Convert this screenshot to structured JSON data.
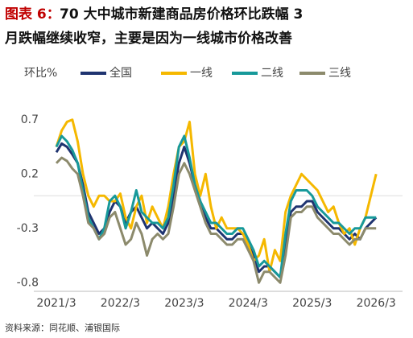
{
  "chart_data": {
    "type": "line",
    "title_prefix": "图表 6：",
    "title_lines": [
      "70 大中城市新建商品房价格环比跌幅 3",
      "月跌幅继续收窄，主要是因为一线城市价格改善"
    ],
    "y_label": "环比%",
    "source": "资料来源：同花顺、浦银国际",
    "categories": [
      "2021/3",
      null,
      null,
      null,
      null,
      null,
      null,
      null,
      null,
      null,
      null,
      null,
      "2022/3",
      null,
      null,
      null,
      null,
      null,
      null,
      null,
      null,
      null,
      null,
      null,
      "2023/3",
      null,
      null,
      null,
      null,
      null,
      null,
      null,
      null,
      null,
      null,
      null,
      "2024/3",
      null,
      null,
      null,
      null,
      null,
      null,
      null,
      null,
      null,
      null,
      null,
      "2025/3",
      null,
      null,
      null,
      null,
      null,
      null,
      null,
      null,
      null,
      null,
      null,
      "2026/3"
    ],
    "ylim": [
      -0.85,
      0.95
    ],
    "yticks": [
      0.7,
      0.2,
      -0.3,
      -0.8
    ],
    "series": [
      {
        "name": "全国",
        "color": "#1f3470",
        "values": [
          0.4,
          0.48,
          0.45,
          0.38,
          0.3,
          0.1,
          -0.15,
          -0.25,
          -0.35,
          -0.3,
          -0.15,
          -0.05,
          -0.1,
          -0.25,
          -0.15,
          -0.1,
          -0.2,
          -0.3,
          -0.25,
          -0.3,
          -0.35,
          -0.25,
          0.0,
          0.3,
          0.45,
          0.3,
          0.1,
          -0.05,
          -0.2,
          -0.3,
          -0.3,
          -0.35,
          -0.4,
          -0.4,
          -0.35,
          -0.35,
          -0.45,
          -0.55,
          -0.7,
          -0.65,
          -0.65,
          -0.7,
          -0.75,
          -0.45,
          -0.15,
          -0.1,
          -0.1,
          -0.05,
          -0.05,
          -0.15,
          -0.2,
          -0.25,
          -0.3,
          -0.3,
          -0.35,
          -0.4,
          -0.35,
          -0.4,
          -0.3,
          -0.25,
          -0.2
        ]
      },
      {
        "name": "一线",
        "color": "#f5b800",
        "values": [
          0.45,
          0.6,
          0.68,
          0.7,
          0.5,
          0.2,
          0.0,
          -0.1,
          0.0,
          0.0,
          -0.05,
          -0.05,
          0.02,
          -0.2,
          -0.3,
          -0.1,
          0.0,
          -0.25,
          -0.1,
          -0.2,
          -0.3,
          -0.1,
          0.2,
          0.45,
          0.5,
          0.68,
          0.2,
          0.0,
          0.2,
          -0.1,
          -0.3,
          -0.2,
          -0.3,
          -0.3,
          -0.3,
          -0.35,
          -0.45,
          -0.6,
          -0.55,
          -0.4,
          -0.7,
          -0.5,
          -0.6,
          -0.15,
          0.0,
          0.1,
          0.2,
          0.15,
          0.1,
          0.05,
          -0.05,
          -0.15,
          -0.1,
          -0.25,
          -0.35,
          -0.3,
          -0.45,
          -0.3,
          -0.2,
          0.0,
          0.2
        ]
      },
      {
        "name": "二线",
        "color": "#17999a",
        "values": [
          0.45,
          0.55,
          0.5,
          0.42,
          0.3,
          0.05,
          -0.2,
          -0.3,
          -0.4,
          -0.3,
          -0.05,
          0.0,
          -0.1,
          -0.3,
          -0.15,
          0.05,
          -0.15,
          -0.2,
          -0.25,
          -0.25,
          -0.3,
          -0.2,
          0.1,
          0.45,
          0.55,
          0.35,
          0.1,
          -0.05,
          -0.15,
          -0.25,
          -0.25,
          -0.3,
          -0.35,
          -0.35,
          -0.3,
          -0.3,
          -0.4,
          -0.5,
          -0.65,
          -0.6,
          -0.65,
          -0.7,
          -0.75,
          -0.35,
          -0.05,
          0.05,
          0.05,
          0.05,
          0.0,
          -0.1,
          -0.15,
          -0.2,
          -0.25,
          -0.25,
          -0.3,
          -0.35,
          -0.3,
          -0.3,
          -0.2,
          -0.2,
          -0.2
        ]
      },
      {
        "name": "三线",
        "color": "#8c8a6c",
        "values": [
          0.3,
          0.35,
          0.32,
          0.25,
          0.2,
          0.0,
          -0.25,
          -0.3,
          -0.4,
          -0.35,
          -0.2,
          -0.15,
          -0.3,
          -0.45,
          -0.4,
          -0.25,
          -0.35,
          -0.55,
          -0.4,
          -0.35,
          -0.4,
          -0.35,
          -0.1,
          0.2,
          0.3,
          0.2,
          0.05,
          -0.1,
          -0.25,
          -0.35,
          -0.35,
          -0.4,
          -0.45,
          -0.45,
          -0.4,
          -0.4,
          -0.5,
          -0.6,
          -0.8,
          -0.7,
          -0.7,
          -0.75,
          -0.8,
          -0.55,
          -0.2,
          -0.15,
          -0.15,
          -0.1,
          -0.1,
          -0.2,
          -0.25,
          -0.3,
          -0.35,
          -0.35,
          -0.4,
          -0.45,
          -0.4,
          -0.4,
          -0.3,
          -0.3,
          -0.3
        ]
      }
    ],
    "grid": false
  }
}
